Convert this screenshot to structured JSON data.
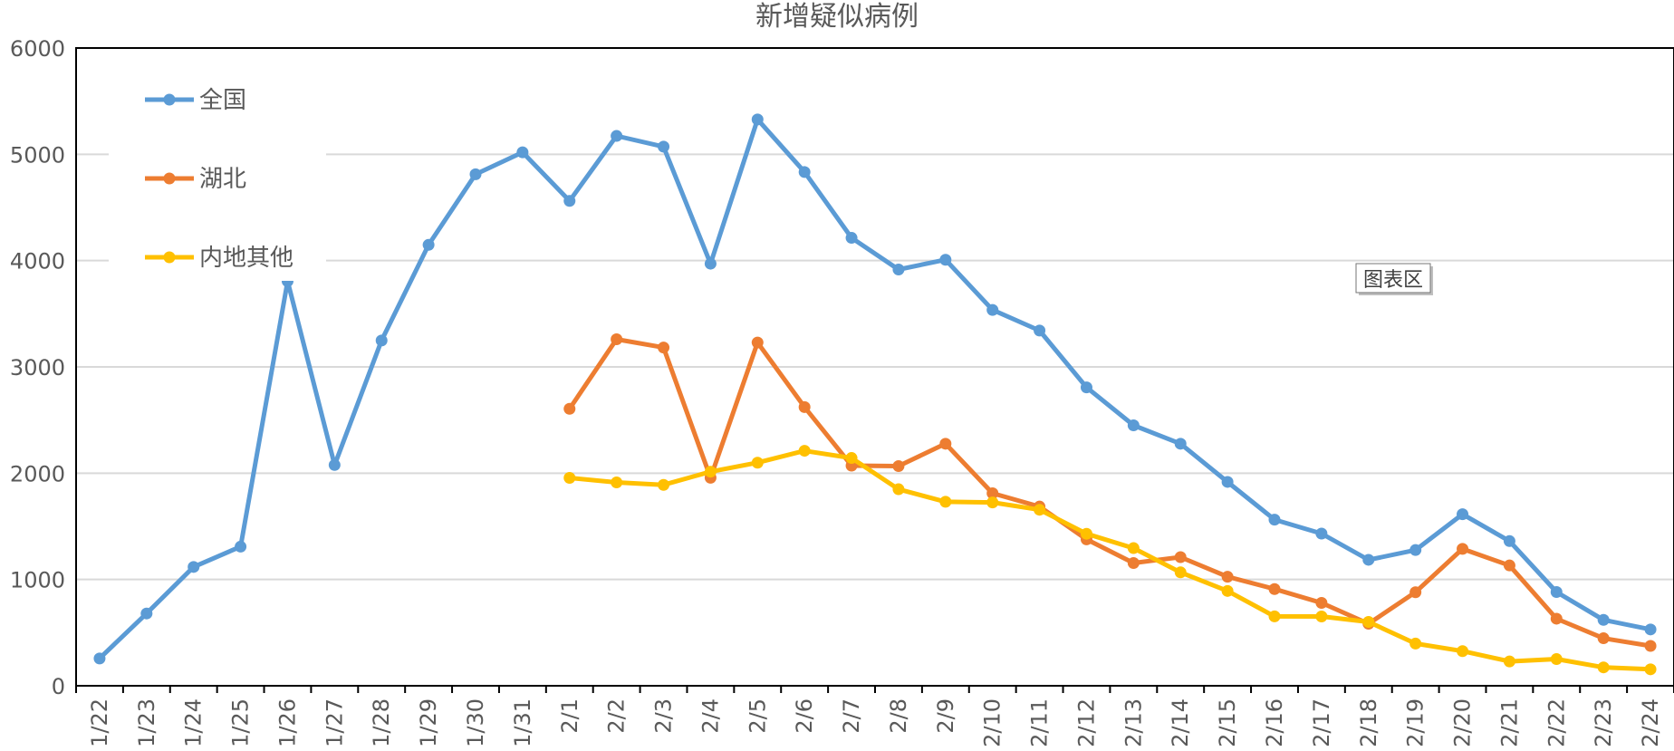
{
  "chart_data": {
    "type": "line",
    "title": "新增疑似病例",
    "ylim": [
      0,
      6000
    ],
    "yticks": [
      "0",
      "1000",
      "2000",
      "3000",
      "4000",
      "5000",
      "6000"
    ],
    "categories": [
      "1/22",
      "1/23",
      "1/24",
      "1/25",
      "1/26",
      "1/27",
      "1/28",
      "1/29",
      "1/30",
      "1/31",
      "2/1",
      "2/2",
      "2/3",
      "2/4",
      "2/5",
      "2/6",
      "2/7",
      "2/8",
      "2/9",
      "2/10",
      "2/11",
      "2/12",
      "2/13",
      "2/14",
      "2/15",
      "2/16",
      "2/17",
      "2/18",
      "2/19",
      "2/20",
      "2/21",
      "2/22",
      "2/23",
      "2/24"
    ],
    "grid": true,
    "legend_position": "top-left",
    "series": [
      {
        "name": "全国",
        "color": "#5B9BD5",
        "values": [
          257,
          680,
          1118,
          1309,
          3806,
          2077,
          3248,
          4148,
          4812,
          5019,
          4562,
          5173,
          5072,
          3971,
          5328,
          4833,
          4214,
          3916,
          4008,
          3536,
          3342,
          2807,
          2450,
          2277,
          1918,
          1563,
          1432,
          1185,
          1277,
          1614,
          1361,
          882,
          620,
          530
        ]
      },
      {
        "name": "湖北",
        "color": "#ED7D31",
        "values": [
          null,
          null,
          null,
          null,
          null,
          null,
          null,
          null,
          null,
          null,
          2606,
          3260,
          3182,
          1957,
          3229,
          2622,
          2071,
          2067,
          2277,
          1811,
          1686,
          1377,
          1155,
          1210,
          1026,
          910,
          780,
          584,
          880,
          1288,
          1132,
          631,
          447,
          375
        ]
      },
      {
        "name": "内地其他",
        "color": "#FFC000",
        "values": [
          null,
          null,
          null,
          null,
          null,
          null,
          null,
          null,
          null,
          null,
          1956,
          1913,
          1890,
          2014,
          2099,
          2211,
          2143,
          1849,
          1731,
          1725,
          1656,
          1430,
          1295,
          1067,
          892,
          653,
          652,
          601,
          397,
          326,
          229,
          251,
          173,
          155
        ]
      }
    ]
  },
  "tooltip": {
    "label": "图表区"
  }
}
